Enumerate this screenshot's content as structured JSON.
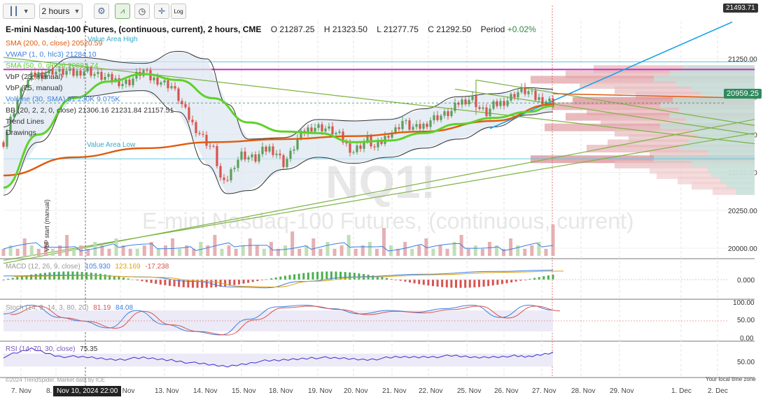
{
  "toolbar": {
    "chart_type_icon": "candlestick-icon",
    "interval": "2 hours",
    "settings_icon": "gear-icon",
    "mountain_icon": "mountain-icon",
    "clock_icon": "clock-icon",
    "crosshair_icon": "crosshair-icon",
    "log_label": "Log"
  },
  "header": {
    "title": "E-mini Nasdaq-100 Futures, (continuous, current), 2 hours, CME",
    "open_label": "O",
    "open": "21287.25",
    "high_label": "H",
    "high": "21323.50",
    "low_label": "L",
    "low": "21277.75",
    "close_label": "C",
    "close": "21292.50",
    "period_label": "Period",
    "period": "+0.02%"
  },
  "watermark": {
    "symbol": "NQ1!",
    "name": "E-mini Nasdaq-100 Futures, (continuous, current)"
  },
  "legend": [
    {
      "text": "SMA (200, 0, close)  20520.59",
      "color": "#e05a0c"
    },
    {
      "text": "VWAP (1, 0, hlc3)  21284.10",
      "color": "#3a7fe0"
    },
    {
      "text": "SMA (50, 0, close)  20881.74",
      "color": "#5fd12a"
    },
    {
      "text": "VbP (25, manual)",
      "color": "#333333"
    },
    {
      "text": "VbP (25, manual)",
      "color": "#333333"
    },
    {
      "text": "Volume (30, SMA)  31.230K  9.075K",
      "color": "#3a7fe0"
    },
    {
      "text": "BB (20, 2, 2, 0, close)  21306.16  21231.84  21157.51",
      "color": "#333333"
    },
    {
      "text": "Trend Lines",
      "color": "#333333"
    },
    {
      "text": "Drawings",
      "color": "#333333"
    }
  ],
  "annotations": {
    "value_area_high": "Value Area High",
    "value_area_low": "Value Area Low",
    "vbp_start": "VbP start (manual)",
    "watermark_copyright": "©2024 TrendSpider. Market data by ICE",
    "local_time": "Your local time zone",
    "crosshair_date": "Nov 10, 2024 22:00",
    "crosshair_price": "21493.71",
    "last_price": "20959.25"
  },
  "panels": {
    "macd": {
      "label": "MACD (12, 26, 9, close)",
      "v1": "105.930",
      "v2": "123.169",
      "v3": "-17.238",
      "tick": "0.000"
    },
    "stoch": {
      "label": "Stoch (14, 3, 14, 3, 80, 20)",
      "v1": "81.19",
      "v2": "84.08",
      "ticks": [
        "100.00",
        "50.00",
        "0.00"
      ]
    },
    "rsi": {
      "label": "RSI (14, 70, 30, close)",
      "v1": "75.35",
      "tick": "50.00"
    }
  },
  "colors": {
    "up": "#5aa05a",
    "down": "#d9534f",
    "sma200": "#e05a0c",
    "sma50": "#5fd12a",
    "vwap": "#3a7fe0",
    "bb": "#333333",
    "bb_fill": "#dce6ef",
    "trend": "#7bb342",
    "blue_trend": "#1aa3e8",
    "value_area": "#62c6e3",
    "magenta": "#c030c0"
  },
  "chart_data": {
    "type": "candlestick",
    "title": "E-mini Nasdaq-100 Futures, (continuous, current), 2 hours, CME",
    "y_ticks": [
      21250,
      21000,
      20750,
      20500,
      20250,
      20000
    ],
    "ylim": [
      19940,
      21500
    ],
    "x_ticks": [
      "7. Nov",
      "8. Nov",
      "12. Nov",
      "13. Nov",
      "14. Nov",
      "15. Nov",
      "18. Nov",
      "19. Nov",
      "20. Nov",
      "21. Nov",
      "22. Nov",
      "25. Nov",
      "26. Nov",
      "27. Nov",
      "28. Nov",
      "29. Nov",
      "1. Dec",
      "2. Dec"
    ],
    "close_path": [
      [
        0,
        20700
      ],
      [
        2,
        20850
      ],
      [
        4,
        20980
      ],
      [
        6,
        21080
      ],
      [
        8,
        21130
      ],
      [
        10,
        21150
      ],
      [
        12,
        21160
      ],
      [
        14,
        21170
      ],
      [
        16,
        21160
      ],
      [
        18,
        21165
      ],
      [
        20,
        21150
      ],
      [
        22,
        21170
      ],
      [
        24,
        21175
      ],
      [
        26,
        21150
      ],
      [
        28,
        21130
      ],
      [
        30,
        21120
      ],
      [
        32,
        21110
      ],
      [
        34,
        21090
      ],
      [
        36,
        21100
      ],
      [
        38,
        21140
      ],
      [
        40,
        21170
      ],
      [
        42,
        21120
      ],
      [
        44,
        21110
      ],
      [
        46,
        21090
      ],
      [
        48,
        21070
      ],
      [
        50,
        20990
      ],
      [
        52,
        20900
      ],
      [
        54,
        20820
      ],
      [
        56,
        20760
      ],
      [
        58,
        20700
      ],
      [
        60,
        20650
      ],
      [
        61,
        20560
      ],
      [
        62,
        20460
      ],
      [
        63,
        20420
      ],
      [
        64,
        20460
      ],
      [
        66,
        20560
      ],
      [
        68,
        20620
      ],
      [
        70,
        20600
      ],
      [
        72,
        20590
      ],
      [
        74,
        20640
      ],
      [
        76,
        20660
      ],
      [
        78,
        20630
      ],
      [
        80,
        20560
      ],
      [
        82,
        20620
      ],
      [
        84,
        20720
      ],
      [
        86,
        20770
      ],
      [
        88,
        20800
      ],
      [
        90,
        20800
      ],
      [
        92,
        20790
      ],
      [
        94,
        20770
      ],
      [
        96,
        20740
      ],
      [
        98,
        20680
      ],
      [
        100,
        20640
      ],
      [
        102,
        20680
      ],
      [
        104,
        20720
      ],
      [
        106,
        20660
      ],
      [
        108,
        20700
      ],
      [
        110,
        20760
      ],
      [
        112,
        20780
      ],
      [
        114,
        20840
      ],
      [
        116,
        20800
      ],
      [
        118,
        20790
      ],
      [
        120,
        20810
      ],
      [
        122,
        20850
      ],
      [
        124,
        20870
      ],
      [
        126,
        20880
      ],
      [
        128,
        20900
      ],
      [
        130,
        20960
      ],
      [
        132,
        20980
      ],
      [
        134,
        20990
      ],
      [
        136,
        20920
      ],
      [
        138,
        20890
      ],
      [
        140,
        20940
      ],
      [
        142,
        20960
      ],
      [
        144,
        20980
      ],
      [
        146,
        21020
      ],
      [
        148,
        21040
      ],
      [
        150,
        21030
      ],
      [
        152,
        20990
      ],
      [
        154,
        20980
      ],
      [
        156,
        20970
      ],
      [
        157,
        20960
      ]
    ],
    "sma200": [
      [
        0,
        20480
      ],
      [
        20,
        20600
      ],
      [
        40,
        20660
      ],
      [
        60,
        20700
      ],
      [
        80,
        20720
      ],
      [
        100,
        20740
      ],
      [
        120,
        20770
      ],
      [
        140,
        20840
      ],
      [
        157,
        20950
      ]
    ],
    "sma50": [
      [
        0,
        20400
      ],
      [
        10,
        20750
      ],
      [
        20,
        20990
      ],
      [
        30,
        21100
      ],
      [
        40,
        21150
      ],
      [
        50,
        21110
      ],
      [
        60,
        20990
      ],
      [
        70,
        20830
      ],
      [
        80,
        20770
      ],
      [
        90,
        20760
      ],
      [
        100,
        20700
      ],
      [
        110,
        20710
      ],
      [
        120,
        20760
      ],
      [
        130,
        20820
      ],
      [
        140,
        20860
      ],
      [
        150,
        20900
      ],
      [
        157,
        20940
      ]
    ],
    "bb_upper": [
      [
        0,
        20800
      ],
      [
        10,
        21150
      ],
      [
        20,
        21260
      ],
      [
        40,
        21220
      ],
      [
        50,
        21300
      ],
      [
        58,
        21250
      ],
      [
        64,
        20950
      ],
      [
        70,
        20720
      ],
      [
        80,
        20730
      ],
      [
        90,
        20850
      ],
      [
        100,
        20840
      ],
      [
        110,
        20850
      ],
      [
        120,
        20920
      ],
      [
        130,
        21000
      ],
      [
        140,
        21020
      ],
      [
        150,
        21060
      ],
      [
        157,
        21050
      ]
    ],
    "bb_lower": [
      [
        0,
        20350
      ],
      [
        10,
        20700
      ],
      [
        20,
        21000
      ],
      [
        40,
        21040
      ],
      [
        50,
        20900
      ],
      [
        58,
        20550
      ],
      [
        64,
        20360
      ],
      [
        70,
        20380
      ],
      [
        80,
        20520
      ],
      [
        90,
        20600
      ],
      [
        100,
        20560
      ],
      [
        110,
        20600
      ],
      [
        120,
        20660
      ],
      [
        130,
        20720
      ],
      [
        140,
        20800
      ],
      [
        150,
        20880
      ],
      [
        157,
        20900
      ]
    ],
    "volume": [
      2,
      3,
      2,
      5,
      3,
      2,
      4,
      2,
      3,
      6,
      2,
      3,
      2,
      4,
      3,
      2,
      5,
      3,
      2,
      2,
      3,
      4,
      2,
      3,
      5,
      2,
      3,
      2,
      4,
      3,
      6,
      2,
      3,
      2,
      3,
      5,
      3,
      2,
      4,
      2,
      3,
      7,
      2,
      3,
      5,
      2,
      4,
      2,
      3,
      6,
      2,
      3,
      4,
      2,
      8,
      3,
      2,
      4,
      2,
      3,
      5,
      2,
      3,
      2,
      4,
      6,
      2,
      3,
      2,
      4,
      3,
      2,
      5,
      3,
      2,
      3,
      4,
      2,
      9
    ],
    "macd_line": [
      [
        0,
        40
      ],
      [
        20,
        50
      ],
      [
        40,
        30
      ],
      [
        55,
        -20
      ],
      [
        65,
        -80
      ],
      [
        75,
        -90
      ],
      [
        85,
        -20
      ],
      [
        100,
        30
      ],
      [
        120,
        60
      ],
      [
        140,
        90
      ],
      [
        157,
        105
      ]
    ],
    "stoch_k": [
      [
        0,
        70
      ],
      [
        8,
        95
      ],
      [
        16,
        60
      ],
      [
        22,
        50
      ],
      [
        30,
        30
      ],
      [
        38,
        80
      ],
      [
        46,
        40
      ],
      [
        54,
        20
      ],
      [
        62,
        10
      ],
      [
        70,
        55
      ],
      [
        78,
        90
      ],
      [
        86,
        95
      ],
      [
        94,
        85
      ],
      [
        102,
        70
      ],
      [
        110,
        80
      ],
      [
        118,
        75
      ],
      [
        126,
        85
      ],
      [
        134,
        95
      ],
      [
        142,
        60
      ],
      [
        150,
        95
      ],
      [
        157,
        81
      ]
    ],
    "rsi": [
      [
        0,
        60
      ],
      [
        8,
        85
      ],
      [
        16,
        62
      ],
      [
        24,
        58
      ],
      [
        32,
        52
      ],
      [
        40,
        56
      ],
      [
        48,
        50
      ],
      [
        56,
        38
      ],
      [
        64,
        30
      ],
      [
        72,
        45
      ],
      [
        80,
        50
      ],
      [
        88,
        58
      ],
      [
        96,
        55
      ],
      [
        104,
        52
      ],
      [
        112,
        58
      ],
      [
        120,
        60
      ],
      [
        128,
        62
      ],
      [
        136,
        58
      ],
      [
        144,
        63
      ],
      [
        150,
        60
      ],
      [
        157,
        75
      ]
    ]
  }
}
